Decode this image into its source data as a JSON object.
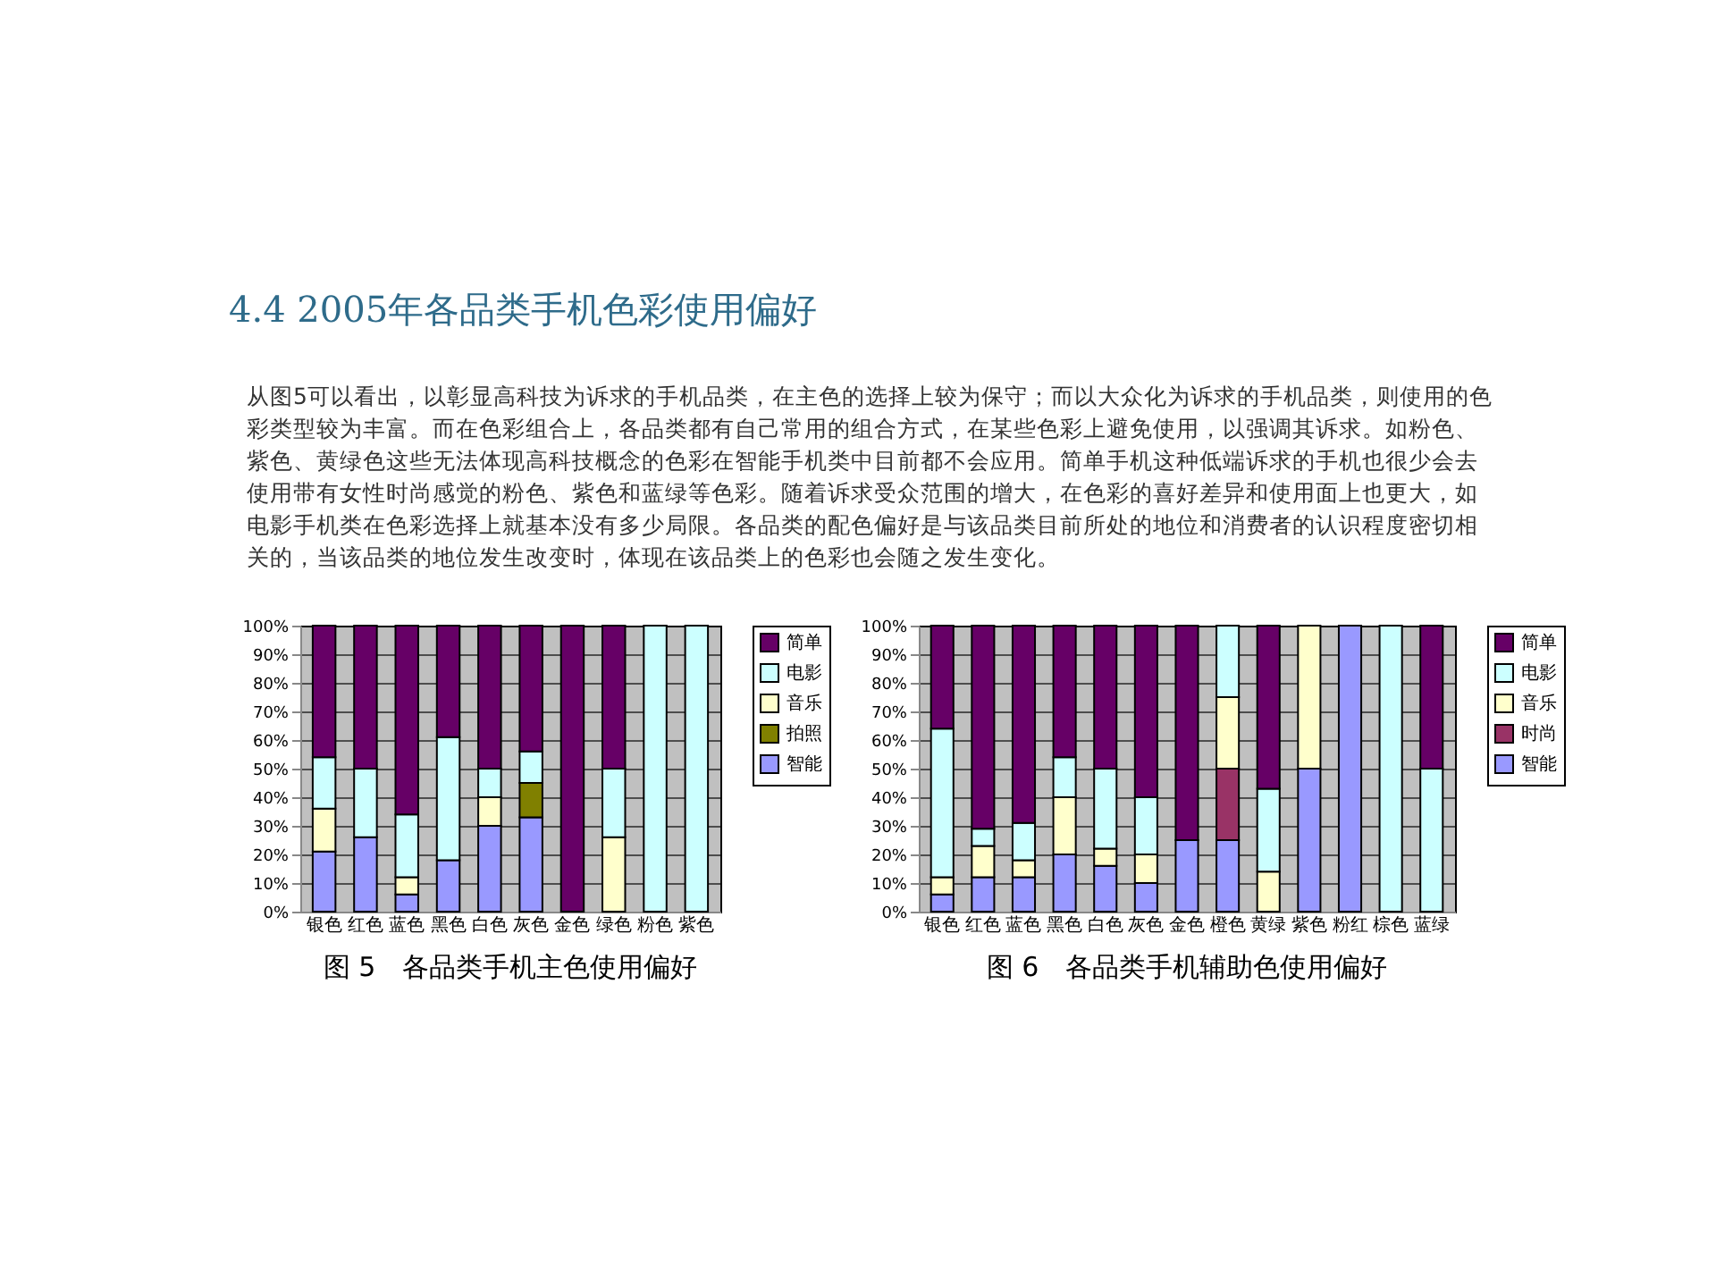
{
  "chart_data": [
    {
      "type": "other",
      "title": "4.4 2005年各品类手机色彩使用偏好",
      "annotations": [
        "从图5可以看出，以彰显高科技为诉求的手机品类，在主色的选择上较为保守；而以大众化为诉求的手机品类，则使用的色彩类型较为丰富。而在色彩组合上，各品类都有自己常用的组合方式，在某些色彩上避免使用，以强调其诉求。如粉色、紫色、黄绿色这些无法体现高科技概念的色彩在智能手机类中目前都不会应用。简单手机这种低端诉求的手机也很少会去使用带有女性时尚感觉的粉色、紫色和蓝绿等色彩。随着诉求受众范围的增大，在色彩的喜好差异和使用面上也更大，如电影手机类在色彩选择上就基本没有多少局限。各品类的配色偏好是与该品类目前所处的地位和消费者的认识程度密切相关的，当该品类的地位发生改变时，体现在该品类上的色彩也会随之发生变化。"
      ]
    },
    {
      "type": "bar",
      "title": "图 5　各品类手机主色使用偏好",
      "stacked": true,
      "grid": "y",
      "legend": "right",
      "categories": [
        "银色",
        "红色",
        "蓝色",
        "黑色",
        "白色",
        "灰色",
        "金色",
        "绿色",
        "粉色",
        "紫色"
      ],
      "ylim": [
        0,
        100
      ],
      "yticks": [
        {
          "value": 0,
          "label": "0%"
        },
        {
          "value": 10,
          "label": "10%"
        },
        {
          "value": 20,
          "label": "20%"
        },
        {
          "value": 30,
          "label": "30%"
        },
        {
          "value": 40,
          "label": "40%"
        },
        {
          "value": 50,
          "label": "50%"
        },
        {
          "value": 60,
          "label": "60%"
        },
        {
          "value": 70,
          "label": "70%"
        },
        {
          "value": 80,
          "label": "80%"
        },
        {
          "value": 90,
          "label": "90%"
        },
        {
          "value": 100,
          "label": "100%"
        }
      ],
      "series": [
        {
          "name": "智能",
          "color": "#9999ff",
          "values": [
            21,
            26,
            6,
            18,
            30,
            33,
            null,
            null,
            null,
            null
          ]
        },
        {
          "name": "拍照",
          "color": "#808000",
          "values": [
            null,
            null,
            null,
            null,
            null,
            12,
            null,
            null,
            null,
            null
          ]
        },
        {
          "name": "音乐",
          "color": "#ffffcc",
          "values": [
            15,
            null,
            6,
            null,
            10,
            null,
            null,
            26,
            null,
            null
          ]
        },
        {
          "name": "电影",
          "color": "#ccffff",
          "values": [
            18,
            24,
            22,
            43,
            10,
            11,
            null,
            24,
            100,
            100
          ]
        },
        {
          "name": "简单",
          "color": "#660066",
          "values": [
            46,
            50,
            66,
            39,
            50,
            44,
            100,
            50,
            null,
            null
          ]
        }
      ]
    },
    {
      "type": "bar",
      "title": "图 6　各品类手机辅助色使用偏好",
      "stacked": true,
      "grid": "y",
      "legend": "right",
      "categories": [
        "银色",
        "红色",
        "蓝色",
        "黑色",
        "白色",
        "灰色",
        "金色",
        "橙色",
        "黄绿",
        "紫色",
        "粉红",
        "棕色",
        "蓝绿"
      ],
      "ylim": [
        0,
        100
      ],
      "yticks": [
        {
          "value": 0,
          "label": "0%"
        },
        {
          "value": 10,
          "label": "10%"
        },
        {
          "value": 20,
          "label": "20%"
        },
        {
          "value": 30,
          "label": "30%"
        },
        {
          "value": 40,
          "label": "40%"
        },
        {
          "value": 50,
          "label": "50%"
        },
        {
          "value": 60,
          "label": "60%"
        },
        {
          "value": 70,
          "label": "70%"
        },
        {
          "value": 80,
          "label": "80%"
        },
        {
          "value": 90,
          "label": "90%"
        },
        {
          "value": 100,
          "label": "100%"
        }
      ],
      "series": [
        {
          "name": "智能",
          "color": "#9999ff",
          "values": [
            6,
            12,
            12,
            20,
            16,
            10,
            25,
            25,
            null,
            50,
            100,
            null,
            null
          ]
        },
        {
          "name": "时尚",
          "color": "#993366",
          "values": [
            null,
            null,
            null,
            null,
            null,
            null,
            null,
            25,
            null,
            null,
            null,
            null,
            null
          ]
        },
        {
          "name": "音乐",
          "color": "#ffffcc",
          "values": [
            6,
            11,
            6,
            20,
            6,
            10,
            null,
            25,
            14,
            50,
            null,
            null,
            null
          ]
        },
        {
          "name": "电影",
          "color": "#ccffff",
          "values": [
            52,
            6,
            13,
            14,
            28,
            20,
            null,
            25,
            29,
            null,
            null,
            100,
            50
          ]
        },
        {
          "name": "简单",
          "color": "#660066",
          "values": [
            36,
            71,
            69,
            46,
            50,
            60,
            75,
            null,
            57,
            null,
            null,
            null,
            50
          ]
        }
      ]
    }
  ]
}
